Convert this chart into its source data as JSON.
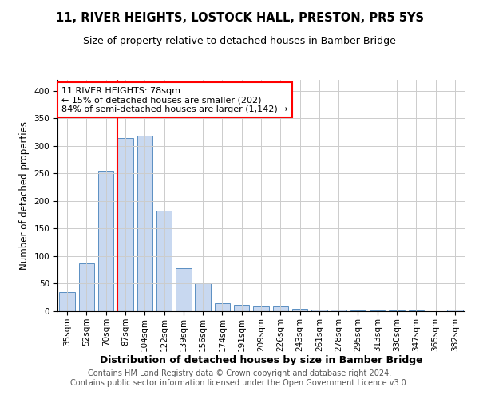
{
  "title1": "11, RIVER HEIGHTS, LOSTOCK HALL, PRESTON, PR5 5YS",
  "title2": "Size of property relative to detached houses in Bamber Bridge",
  "xlabel": "Distribution of detached houses by size in Bamber Bridge",
  "ylabel": "Number of detached properties",
  "categories": [
    "35sqm",
    "52sqm",
    "70sqm",
    "87sqm",
    "104sqm",
    "122sqm",
    "139sqm",
    "156sqm",
    "174sqm",
    "191sqm",
    "209sqm",
    "226sqm",
    "243sqm",
    "261sqm",
    "278sqm",
    "295sqm",
    "313sqm",
    "330sqm",
    "347sqm",
    "365sqm",
    "382sqm"
  ],
  "values": [
    35,
    87,
    255,
    315,
    318,
    182,
    78,
    51,
    14,
    11,
    8,
    8,
    5,
    3,
    3,
    2,
    1,
    1,
    1,
    0,
    3
  ],
  "bar_color": "#c8d8f0",
  "bar_edge_color": "#5a8fc2",
  "vline_color": "red",
  "vline_x_index": 3,
  "annotation_text": "11 RIVER HEIGHTS: 78sqm\n← 15% of detached houses are smaller (202)\n84% of semi-detached houses are larger (1,142) →",
  "annotation_box_color": "white",
  "annotation_box_edge_color": "red",
  "ylim": [
    0,
    420
  ],
  "yticks": [
    0,
    50,
    100,
    150,
    200,
    250,
    300,
    350,
    400
  ],
  "grid_color": "#cccccc",
  "plot_bg_color": "white",
  "fig_bg_color": "white",
  "footer1": "Contains HM Land Registry data © Crown copyright and database right 2024.",
  "footer2": "Contains public sector information licensed under the Open Government Licence v3.0.",
  "title1_fontsize": 10.5,
  "title2_fontsize": 9,
  "xlabel_fontsize": 9,
  "ylabel_fontsize": 8.5,
  "tick_fontsize": 7.5,
  "annotation_fontsize": 8,
  "footer_fontsize": 7
}
